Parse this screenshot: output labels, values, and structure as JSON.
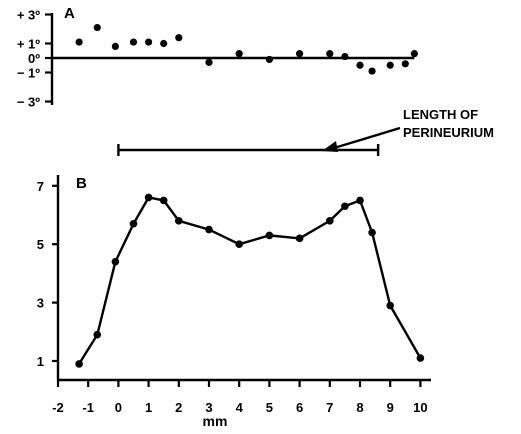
{
  "chart_data": [
    {
      "panel": "A",
      "type": "scatter",
      "yticks": [
        {
          "value": 3,
          "label": "+ 3º"
        },
        {
          "value": 1,
          "label": "+ 1º"
        },
        {
          "value": 0,
          "label": "0º"
        },
        {
          "value": -1,
          "label": "− 1º"
        },
        {
          "value": -3,
          "label": "− 3º"
        }
      ],
      "ylim": [
        -3.6,
        3.4
      ],
      "xlim": [
        -2,
        10
      ],
      "zero_line": [
        -1.6,
        9.8
      ],
      "points": [
        {
          "x": -1.3,
          "y": 1.1
        },
        {
          "x": -0.7,
          "y": 2.1
        },
        {
          "x": -0.1,
          "y": 0.8
        },
        {
          "x": 0.5,
          "y": 1.1
        },
        {
          "x": 1.0,
          "y": 1.1
        },
        {
          "x": 1.5,
          "y": 1.0
        },
        {
          "x": 2.0,
          "y": 1.4
        },
        {
          "x": 3.0,
          "y": -0.3
        },
        {
          "x": 4.0,
          "y": 0.3
        },
        {
          "x": 5.0,
          "y": -0.1
        },
        {
          "x": 6.0,
          "y": 0.3
        },
        {
          "x": 7.0,
          "y": 0.3
        },
        {
          "x": 7.5,
          "y": 0.1
        },
        {
          "x": 8.0,
          "y": -0.5
        },
        {
          "x": 8.4,
          "y": -0.9
        },
        {
          "x": 9.0,
          "y": -0.5
        },
        {
          "x": 9.5,
          "y": -0.4
        },
        {
          "x": 9.8,
          "y": 0.3
        }
      ]
    },
    {
      "panel": "B",
      "type": "line",
      "xlabel": "mm",
      "xticks": [
        -2,
        -1,
        0,
        1,
        2,
        3,
        4,
        5,
        6,
        7,
        8,
        9,
        10
      ],
      "yticks": [
        1,
        3,
        5,
        7
      ],
      "xlim": [
        -2,
        10
      ],
      "ylim": [
        0.5,
        7
      ],
      "x": [
        -1.3,
        -0.7,
        -0.1,
        0.5,
        1.0,
        1.5,
        2.0,
        3.0,
        4.0,
        5.0,
        6.0,
        7.0,
        7.5,
        8.0,
        8.4,
        9.0,
        10.0
      ],
      "y": [
        0.9,
        1.9,
        4.4,
        5.7,
        6.6,
        6.5,
        5.8,
        5.5,
        5.0,
        5.3,
        5.2,
        5.8,
        6.3,
        6.5,
        5.4,
        2.9,
        1.1
      ]
    }
  ],
  "annotation": {
    "text_line1": "LENGTH OF",
    "text_line2": "PERINEURIUM",
    "bar_start": 0,
    "bar_end": 8.6
  }
}
